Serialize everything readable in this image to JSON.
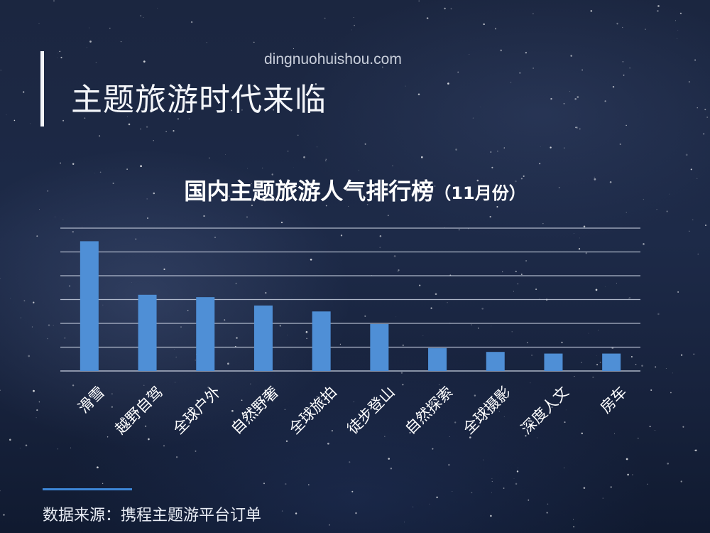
{
  "watermark": "dingnuohuishou.com",
  "page_title": "主题旅游时代来临",
  "source_text": "数据来源：携程主题游平台订单",
  "chart_data": {
    "type": "bar",
    "title": "国内主题旅游人气排行榜",
    "subtitle": "（11月份）",
    "categories": [
      "滑雪",
      "越野自驾",
      "全球户外",
      "自然野奢",
      "全球旅拍",
      "徒步登山",
      "自然探索",
      "全球摄影",
      "深度人文",
      "房车"
    ],
    "values": [
      54.5,
      32,
      31,
      27.5,
      25,
      19.7,
      9.6,
      8,
      7.3,
      7.3
    ],
    "ylim": [
      0,
      60
    ],
    "gridlines": 6,
    "grid": true,
    "bar_color": "#4f8fd6",
    "grid_color": "#c8d0e0"
  }
}
